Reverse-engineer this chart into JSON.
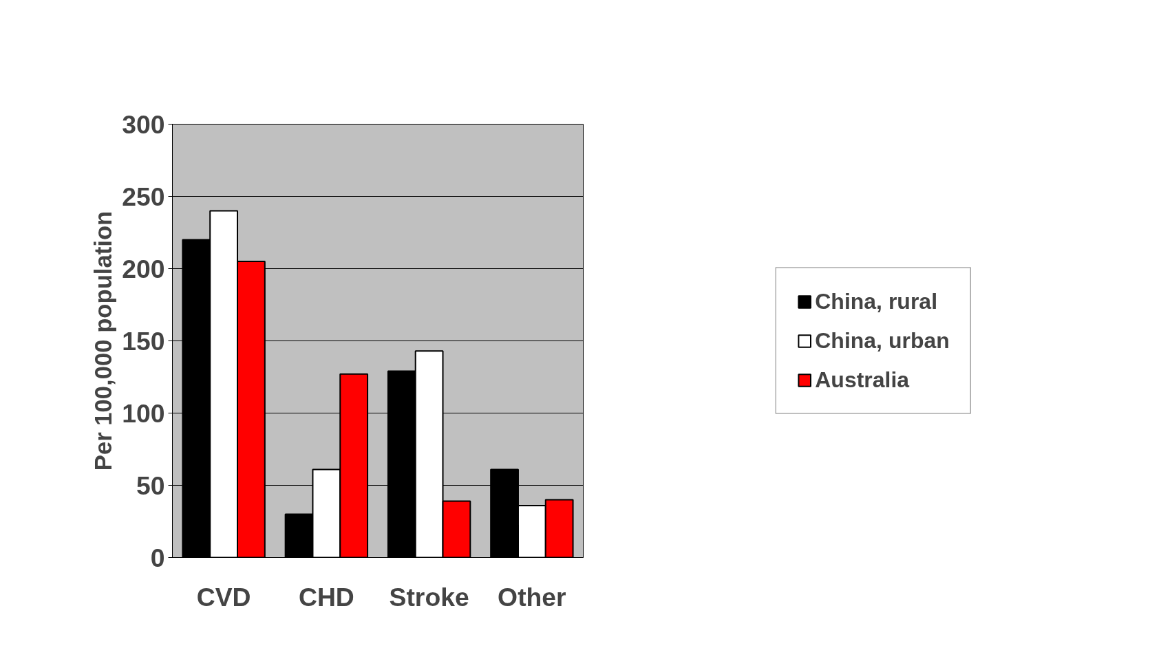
{
  "chart_data": {
    "type": "bar",
    "ylabel": "Per 100,000 population",
    "categories": [
      "CVD",
      "CHD",
      "Stroke",
      "Other"
    ],
    "series": [
      {
        "name": "China, rural",
        "color": "#000000",
        "values": [
          220,
          30,
          129,
          61
        ]
      },
      {
        "name": "China, urban",
        "color": "#ffffff",
        "values": [
          240,
          61,
          143,
          36
        ]
      },
      {
        "name": "Australia",
        "color": "#ff0000",
        "values": [
          205,
          127,
          39,
          40
        ]
      }
    ],
    "ylim": [
      0,
      300
    ],
    "yticks": [
      0,
      50,
      100,
      150,
      200,
      250,
      300
    ],
    "grid": "y",
    "legend": "right"
  }
}
